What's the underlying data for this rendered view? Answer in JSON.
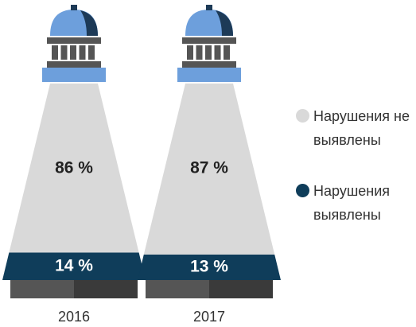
{
  "chart_data": {
    "type": "bar",
    "stacked": true,
    "categories": [
      "2016",
      "2017"
    ],
    "series": [
      {
        "name": "Нарушения выявлены",
        "color": "#0f3d5a",
        "values": [
          14,
          13
        ],
        "value_labels": [
          "14 %",
          "13 %"
        ]
      },
      {
        "name": "Нарушения не выявлены",
        "color": "#d9d9d9",
        "values": [
          86,
          87
        ],
        "value_labels": [
          "86 %",
          "87 %"
        ]
      }
    ]
  }
}
